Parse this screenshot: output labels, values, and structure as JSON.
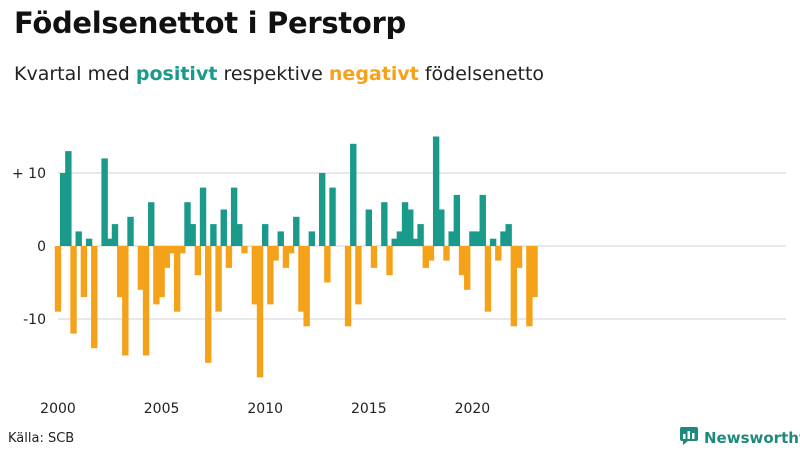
{
  "header": {
    "title": "Födelsenettot i Perstorp",
    "subtitle_before": "Kvartal med ",
    "subtitle_positive": "positivt",
    "subtitle_middle": " respektive ",
    "subtitle_negative": "negativt",
    "subtitle_after": " födelsenetto"
  },
  "footer": {
    "source": "Källa: SCB",
    "brand": "Newsworthy",
    "brand_icon": "newsworthy-logo-icon"
  },
  "colors": {
    "positive": "#1a9a8a",
    "negative": "#f5a21b",
    "grid": "#d0d0d0",
    "brand": "#1f8a7c"
  },
  "chart_data": {
    "type": "bar",
    "title": "Födelsenettot i Perstorp",
    "xlabel": "",
    "ylabel": "",
    "x_start_year": 2000,
    "periods_per_year": 4,
    "x_ticks": [
      {
        "year": 2000,
        "label": "2000"
      },
      {
        "year": 2005,
        "label": "2005"
      },
      {
        "year": 2010,
        "label": "2010"
      },
      {
        "year": 2015,
        "label": "2015"
      },
      {
        "year": 2020,
        "label": "2020"
      }
    ],
    "y_ticks": [
      {
        "value": 10,
        "label": "+ 10"
      },
      {
        "value": 0,
        "label": "0"
      },
      {
        "value": -10,
        "label": "-10"
      }
    ],
    "ylim": [
      -18,
      15
    ],
    "grid": true,
    "values": [
      -9,
      10,
      13,
      -12,
      2,
      -7,
      1,
      -14,
      0,
      12,
      1,
      3,
      -7,
      -15,
      4,
      0,
      -6,
      -15,
      6,
      -8,
      -7,
      -3,
      -1,
      -9,
      -1,
      6,
      3,
      -4,
      8,
      -16,
      3,
      -9,
      5,
      -3,
      8,
      3,
      -1,
      0,
      -8,
      -18,
      3,
      -8,
      -2,
      2,
      -3,
      -1,
      4,
      -9,
      -11,
      2,
      0,
      10,
      -5,
      8,
      0,
      0,
      -11,
      14,
      -8,
      0,
      5,
      -3,
      0,
      6,
      -4,
      1,
      2,
      6,
      5,
      1,
      3,
      -3,
      -2,
      15,
      5,
      -2,
      2,
      7,
      -4,
      -6,
      2,
      2,
      7,
      -9,
      1,
      -2,
      2,
      3,
      -11,
      -3,
      0,
      -11,
      -7
    ]
  }
}
